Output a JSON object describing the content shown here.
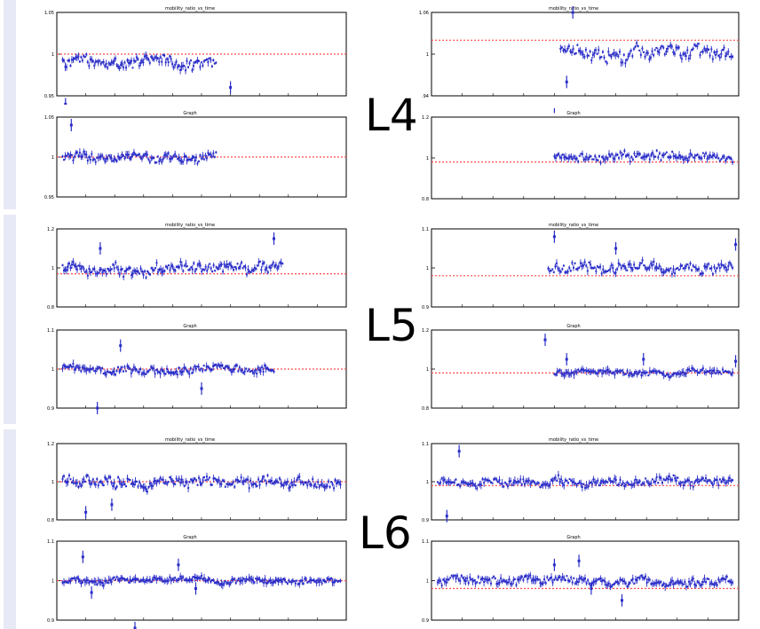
{
  "layers": [
    {
      "label": "L4",
      "panels": [
        {
          "title": "mobility_ratio_vs_time",
          "y": [
            1.05,
            1.0,
            0.95
          ],
          "ref": 1.0,
          "start": 0.02,
          "end": 0.55,
          "base": 0.99,
          "noise": 0.01,
          "outliers": [
            [
              0.03,
              0.94
            ],
            [
              0.6,
              0.96
            ]
          ]
        },
        {
          "title": "mobility_ratio_vs_time",
          "y": [
            1.06,
            1.0,
            0.94
          ],
          "ref": 1.02,
          "start": 0.42,
          "end": 0.98,
          "base": 1.0,
          "noise": 0.015,
          "outliers": [
            [
              0.44,
              0.96
            ],
            [
              0.46,
              1.06
            ]
          ]
        },
        {
          "title": "Graph",
          "y": [
            1.05,
            1.0,
            0.95
          ],
          "ref": 1.0,
          "start": 0.02,
          "end": 0.55,
          "base": 1.0,
          "noise": 0.008,
          "outliers": [
            [
              0.03,
              0.93
            ],
            [
              0.05,
              1.04
            ]
          ]
        },
        {
          "title": "Graph",
          "y": [
            1.2,
            1.0,
            0.8
          ],
          "ref": 0.98,
          "start": 0.4,
          "end": 0.98,
          "base": 1.0,
          "noise": 0.03,
          "outliers": [
            [
              0.4,
              1.25
            ]
          ]
        }
      ]
    },
    {
      "label": "L5",
      "panels": [
        {
          "title": "mobility_ratio_vs_time",
          "y": [
            1.2,
            1.0,
            0.8
          ],
          "ref": 0.97,
          "start": 0.02,
          "end": 0.78,
          "base": 1.0,
          "noise": 0.04,
          "outliers": [
            [
              0.15,
              1.1
            ],
            [
              0.75,
              1.15
            ]
          ]
        },
        {
          "title": "mobility_ratio_vs_time",
          "y": [
            1.1,
            1.0,
            0.9
          ],
          "ref": 0.98,
          "start": 0.38,
          "end": 0.98,
          "base": 1.0,
          "noise": 0.02,
          "outliers": [
            [
              0.4,
              1.08
            ],
            [
              0.6,
              1.05
            ],
            [
              0.99,
              1.06
            ]
          ]
        },
        {
          "title": "Graph",
          "y": [
            1.1,
            1.0,
            0.9
          ],
          "ref": 1.0,
          "start": 0.02,
          "end": 0.75,
          "base": 1.0,
          "noise": 0.015,
          "outliers": [
            [
              0.22,
              1.06
            ],
            [
              0.5,
              0.95
            ],
            [
              0.14,
              0.9
            ]
          ]
        },
        {
          "title": "Graph",
          "y": [
            1.2,
            1.0,
            0.8
          ],
          "ref": 0.98,
          "start": 0.4,
          "end": 0.98,
          "base": 0.98,
          "noise": 0.02,
          "outliers": [
            [
              0.37,
              1.15
            ],
            [
              0.44,
              1.05
            ],
            [
              0.69,
              1.05
            ],
            [
              0.99,
              1.04
            ]
          ]
        }
      ]
    },
    {
      "label": "L6",
      "panels": [
        {
          "title": "mobility_ratio_vs_time",
          "y": [
            1.2,
            1.0,
            0.8
          ],
          "ref": 1.0,
          "start": 0.02,
          "end": 0.98,
          "base": 1.0,
          "noise": 0.04,
          "outliers": [
            [
              0.1,
              0.84
            ],
            [
              0.19,
              0.88
            ]
          ]
        },
        {
          "title": "mobility_ratio_vs_time",
          "y": [
            1.1,
            1.0,
            0.9
          ],
          "ref": 0.99,
          "start": 0.02,
          "end": 0.98,
          "base": 1.0,
          "noise": 0.015,
          "outliers": [
            [
              0.05,
              0.91
            ],
            [
              0.09,
              1.08
            ]
          ]
        },
        {
          "title": "Graph",
          "y": [
            1.1,
            1.0,
            0.9
          ],
          "ref": 1.0,
          "start": 0.02,
          "end": 0.98,
          "base": 1.0,
          "noise": 0.01,
          "outliers": [
            [
              0.09,
              1.06
            ],
            [
              0.12,
              0.97
            ],
            [
              0.27,
              0.88
            ],
            [
              0.42,
              1.04
            ],
            [
              0.48,
              0.98
            ]
          ]
        },
        {
          "title": "Graph",
          "y": [
            1.1,
            1.0,
            0.9
          ],
          "ref": 0.98,
          "start": 0.02,
          "end": 0.98,
          "base": 1.0,
          "noise": 0.015,
          "outliers": [
            [
              0.4,
              1.04
            ],
            [
              0.52,
              0.98
            ],
            [
              0.62,
              0.95
            ],
            [
              0.48,
              1.05
            ]
          ]
        }
      ]
    }
  ],
  "colors": {
    "points": "#2b2ec8",
    "reference": "#ff4d4d",
    "frame": "#000000",
    "band": "#e8e9f6"
  }
}
